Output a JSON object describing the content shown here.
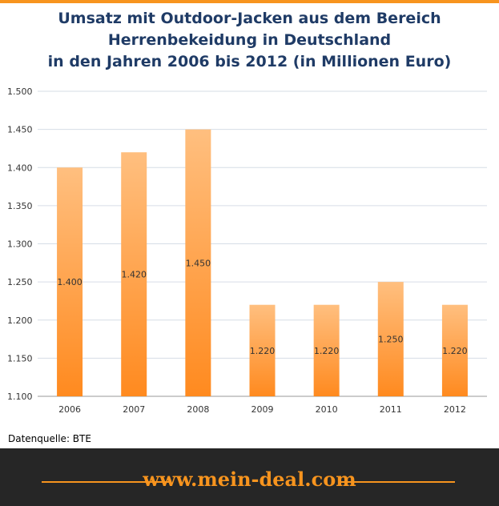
{
  "title_lines": [
    "Umsatz mit Outdoor-Jacken  aus dem Bereich",
    "Herrenbekeidung  in Deutschland",
    "in den Jahren 2006 bis 2012 (in Millionen Euro)"
  ],
  "source": "Datenquelle: BTE",
  "footer": {
    "brand": "www.mein-deal.com"
  },
  "colors": {
    "accent": "#f7941e",
    "bar_top": "#ffbf7f",
    "bar_bottom": "#ff8a1f",
    "title": "#1f3b66",
    "footer_bg": "#262626"
  },
  "chart_data": {
    "type": "bar",
    "title": "Umsatz mit Outdoor-Jacken aus dem Bereich Herrenbekeidung in Deutschland in den Jahren 2006 bis 2012 (in Millionen Euro)",
    "categories": [
      "2006",
      "2007",
      "2008",
      "2009",
      "2010",
      "2011",
      "2012"
    ],
    "values": [
      1400,
      1420,
      1450,
      1220,
      1220,
      1250,
      1220
    ],
    "value_labels": [
      "1.400",
      "1.420",
      "1.450",
      "1.220",
      "1.220",
      "1.250",
      "1.220"
    ],
    "ylim": [
      1100,
      1500
    ],
    "yticks": [
      1100,
      1150,
      1200,
      1250,
      1300,
      1350,
      1400,
      1450,
      1500
    ],
    "ytick_labels": [
      "1.100",
      "1.150",
      "1.200",
      "1.250",
      "1.300",
      "1.350",
      "1.400",
      "1.450",
      "1.500"
    ],
    "xlabel": "",
    "ylabel": "",
    "grid": true,
    "legend": "none"
  }
}
